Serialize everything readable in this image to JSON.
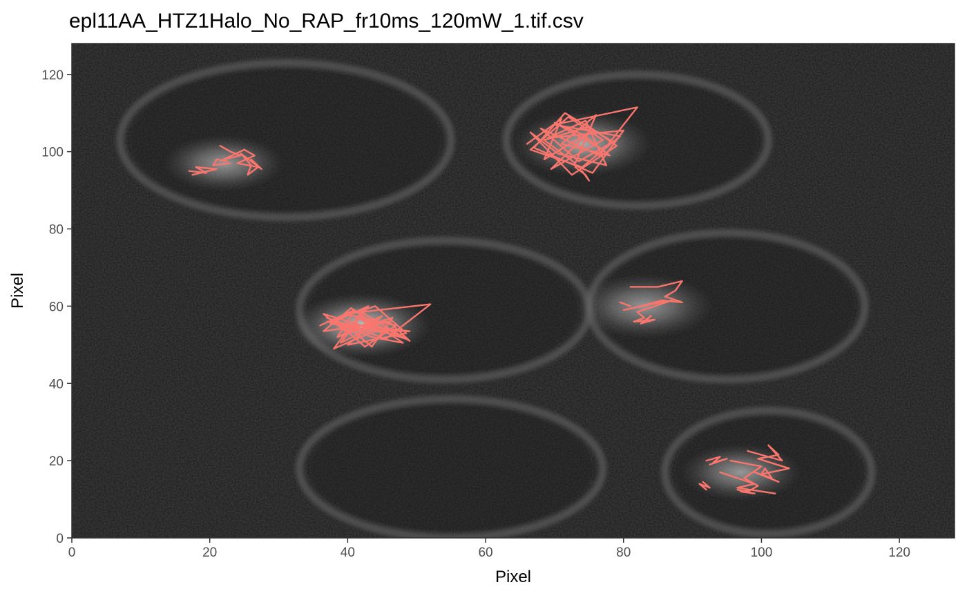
{
  "chart_data": {
    "type": "line",
    "title": "epl11AA_HTZ1Halo_No_RAP_fr10ms_120mW_1.tif.csv",
    "xlabel": "Pixel",
    "ylabel": "Pixel",
    "xlim": [
      0,
      128
    ],
    "ylim": [
      0,
      128
    ],
    "x_ticks": [
      0,
      20,
      40,
      60,
      80,
      100,
      120
    ],
    "y_ticks": [
      0,
      20,
      40,
      60,
      80,
      100,
      120
    ],
    "x_tick_labels": [
      "0",
      "20",
      "40",
      "60",
      "80",
      "100",
      "120"
    ],
    "y_tick_labels": [
      "0",
      "20",
      "40",
      "60",
      "80",
      "100",
      "120"
    ],
    "grid": false,
    "legend": "none",
    "background": "grayscale microscopy image (128x128 px)",
    "track_color": "#f8766d",
    "panel_border_color": "#333333",
    "tick_color": "#333333",
    "bright_spots": [
      {
        "x": 22,
        "y": 97,
        "r": 7,
        "intensity": 0.55
      },
      {
        "x": 42,
        "y": 55,
        "r": 8,
        "intensity": 0.75
      },
      {
        "x": 74,
        "y": 102,
        "r": 8,
        "intensity": 0.65
      },
      {
        "x": 83,
        "y": 60,
        "r": 8,
        "intensity": 0.55
      },
      {
        "x": 97,
        "y": 17,
        "r": 7,
        "intensity": 0.55
      }
    ],
    "cell_outlines": [
      {
        "cx": 31,
        "cy": 103,
        "rx": 24,
        "ry": 20
      },
      {
        "cx": 82,
        "cy": 103,
        "rx": 19,
        "ry": 17
      },
      {
        "cx": 54,
        "cy": 59,
        "rx": 21,
        "ry": 18
      },
      {
        "cx": 95,
        "cy": 60,
        "rx": 20,
        "ry": 19
      },
      {
        "cx": 55,
        "cy": 18,
        "rx": 22,
        "ry": 18
      },
      {
        "cx": 101,
        "cy": 17,
        "rx": 15,
        "ry": 16
      }
    ],
    "series": [
      {
        "x": [
          17.0,
          19.5,
          18.0,
          21.0,
          17.5
        ],
        "y": [
          95.0,
          94.5,
          96.0,
          95.5,
          94.0
        ]
      },
      {
        "x": [
          21.5,
          23.0,
          24.5,
          22.0,
          25.0,
          26.5,
          24.0,
          27.0,
          25.5,
          26.0,
          24.5,
          27.5,
          26.0
        ],
        "y": [
          101.5,
          100.0,
          99.0,
          98.0,
          100.5,
          99.0,
          97.0,
          96.0,
          94.0,
          96.5,
          99.5,
          95.5,
          98.0
        ]
      },
      {
        "x": [
          22.5,
          21.0,
          20.5,
          23.0
        ],
        "y": [
          97.5,
          98.0,
          96.5,
          97.0
        ]
      },
      {
        "x": [
          36.0,
          41.0,
          38.5,
          45.0,
          40.0,
          48.5,
          44.0,
          38.0,
          42.5,
          47.0,
          39.5,
          52.0,
          45.5,
          41.0,
          37.0,
          43.5,
          48.0,
          40.5,
          36.5,
          46.0,
          49.0,
          42.0,
          38.0,
          44.5,
          41.0,
          47.5,
          37.5,
          43.0,
          39.0,
          45.5,
          40.0,
          36.5,
          48.5,
          42.0,
          38.5,
          46.5,
          43.5,
          40.5,
          49.0,
          37.0
        ],
        "y": [
          55.0,
          59.0,
          52.0,
          57.5,
          50.0,
          53.0,
          60.0,
          56.5,
          49.5,
          55.0,
          58.0,
          60.5,
          51.5,
          54.5,
          57.0,
          52.0,
          50.5,
          59.5,
          53.5,
          56.0,
          51.0,
          58.5,
          49.0,
          54.0,
          57.5,
          52.5,
          55.5,
          60.0,
          50.5,
          56.5,
          53.0,
          58.0,
          51.5,
          55.0,
          52.0,
          57.0,
          49.5,
          54.0,
          53.5,
          56.0
        ]
      },
      {
        "x": [
          66.0,
          71.0,
          68.5,
          75.0,
          69.5,
          77.0,
          72.0,
          66.5,
          74.0,
          79.5,
          70.0,
          82.0,
          76.5,
          68.0,
          73.5,
          78.5,
          71.5,
          67.0,
          75.5,
          80.0,
          69.0,
          74.5,
          77.5,
          70.5,
          66.5,
          72.5,
          79.0,
          75.0,
          68.5,
          73.0,
          76.0,
          71.0,
          78.0,
          74.0,
          70.0,
          76.5
        ],
        "y": [
          102.0,
          108.5,
          98.0,
          105.0,
          95.5,
          103.0,
          109.0,
          100.5,
          96.0,
          104.0,
          107.0,
          111.5,
          99.0,
          106.0,
          97.5,
          102.5,
          110.0,
          101.0,
          94.5,
          105.5,
          103.5,
          108.0,
          96.5,
          99.5,
          105.0,
          94.0,
          101.5,
          106.5,
          103.0,
          97.0,
          109.5,
          102.0,
          99.0,
          104.5,
          107.5,
          101.0
        ]
      },
      {
        "x": [
          73.0,
          74.5,
          75.0,
          74.0
        ],
        "y": [
          96.0,
          94.0,
          92.5,
          95.0
        ]
      },
      {
        "x": [
          81.0,
          85.0,
          88.5,
          87.5,
          86.0,
          88.5,
          85.5,
          82.5,
          80.0,
          84.0,
          87.0,
          82.0,
          83.0,
          81.5,
          84.5,
          82.5,
          84.0,
          83.0
        ],
        "y": [
          65.0,
          65.0,
          66.5,
          64.0,
          62.5,
          61.0,
          61.5,
          60.0,
          59.0,
          60.5,
          61.5,
          58.5,
          57.0,
          56.0,
          56.5,
          55.5,
          57.5,
          56.0
        ]
      },
      {
        "x": [
          79.5,
          81.0
        ],
        "y": [
          61.0,
          60.0
        ]
      },
      {
        "x": [
          92.0,
          94.0,
          93.0,
          95.0,
          92.5
        ],
        "y": [
          20.0,
          21.0,
          19.5,
          20.5,
          19.0
        ]
      },
      {
        "x": [
          98.0,
          103.0,
          101.0,
          102.5,
          99.5,
          104.0,
          100.0,
          100.5,
          101.5,
          99.0,
          102.5,
          100.5
        ],
        "y": [
          22.5,
          20.0,
          24.0,
          21.5,
          20.5,
          18.0,
          16.5,
          18.0,
          15.5,
          17.0,
          14.5,
          16.0
        ]
      },
      {
        "x": [
          95.5,
          100.0,
          97.5,
          99.5,
          98.0,
          96.5,
          99.0,
          97.0,
          98.5
        ],
        "y": [
          20.0,
          18.5,
          15.5,
          13.5,
          12.0,
          12.5,
          11.5,
          12.0,
          12.5
        ]
      },
      {
        "x": [
          91.5,
          92.5,
          91.0,
          92.0
        ],
        "y": [
          14.5,
          13.0,
          14.0,
          12.5
        ]
      },
      {
        "x": [
          94.0,
          99.0,
          96.5,
          102.0
        ],
        "y": [
          17.0,
          14.0,
          13.0,
          11.5
        ]
      }
    ]
  }
}
